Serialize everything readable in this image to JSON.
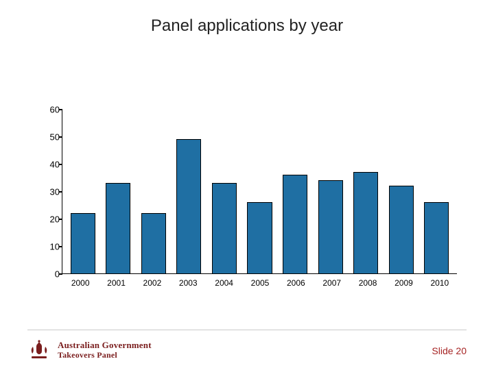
{
  "title": "Panel applications by year",
  "chart": {
    "type": "bar",
    "categories": [
      "2000",
      "2001",
      "2002",
      "2003",
      "2004",
      "2005",
      "2006",
      "2007",
      "2008",
      "2009",
      "2010"
    ],
    "values": [
      22,
      33,
      22,
      49,
      33,
      26,
      36,
      34,
      37,
      32,
      26
    ],
    "bar_color": "#1f6fa3",
    "bar_border_color": "#000000",
    "ylim_min": 0,
    "ylim_max": 60,
    "ytick_step": 10,
    "yticks": [
      "0",
      "10",
      "20",
      "30",
      "40",
      "50",
      "60"
    ],
    "bar_width_ratio": 0.7,
    "axis_color": "#000000",
    "background_color": "#ffffff",
    "label_fontsize": 13,
    "title_fontsize": 24
  },
  "footer": {
    "org_line1": "Australian Government",
    "org_line2": "Takeovers Panel",
    "crest_color": "#7a1d1d",
    "slide_label": "Slide 20"
  }
}
